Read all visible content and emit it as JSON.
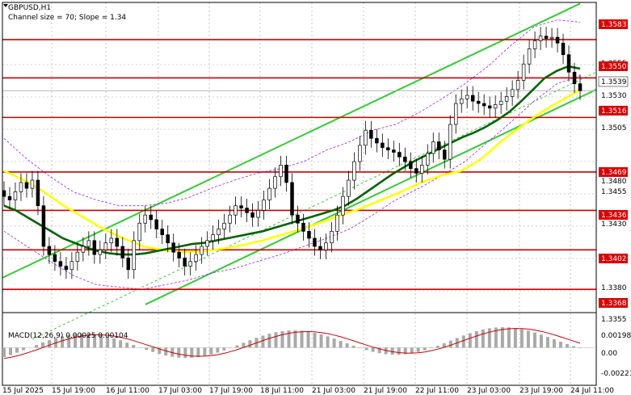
{
  "header": {
    "symbol_timeframe": "GBPUSD,H1",
    "channel_info": "Channel size = 70; Slope = 1.34"
  },
  "levels": [
    {
      "label": "1.3583",
      "value": 1.3583
    },
    {
      "label": "1.3550",
      "value": 1.355
    },
    {
      "label": "1.3516",
      "value": 1.3516
    },
    {
      "label": "1.3469",
      "value": 1.3469
    },
    {
      "label": "1.3436",
      "value": 1.3436
    },
    {
      "label": "1.3402",
      "value": 1.3402
    },
    {
      "label": "1.3368",
      "value": 1.3368
    }
  ],
  "current_price": {
    "label": "1.3539",
    "value": 1.3539
  },
  "price_axis_labels": [
    "1.3555",
    "1.3530",
    "1.3505",
    "1.3480",
    "1.3455",
    "1.3430",
    "1.3380",
    "1.3355"
  ],
  "time_axis_labels": [
    "15 Jul 2025",
    "15 Jul 19:00",
    "16 Jul 11:00",
    "17 Jul 03:00",
    "17 Jul 19:00",
    "18 Jul 11:00",
    "21 Jul 03:00",
    "21 Jul 19:00",
    "22 Jul 11:00",
    "23 Jul 03:00",
    "23 Jul 19:00",
    "24 Jul 11:00"
  ],
  "macd": {
    "label": "MACD(12,26,9) 0.00025 0.00104",
    "axis_labels": [
      "0.00198",
      "0.00",
      "-0.00221"
    ]
  },
  "colors": {
    "level_line": "#cc0000",
    "level_box": "#dd0000",
    "ma_slow": "#ffff00",
    "ma_fast": "#006400",
    "channel": "#32cd32",
    "envelope": "#a020f0",
    "candle": "#000000",
    "grid": "#a0a0a0",
    "macd_bar": "#a9a9a9",
    "macd_signal": "#cc0000"
  },
  "chart_data": {
    "type": "candlestick",
    "price_range": [
      1.3348,
      1.3615
    ],
    "macd_range": [
      -0.00221,
      0.00198
    ],
    "closes": [
      1.3448,
      1.3445,
      1.3452,
      1.346,
      1.3455,
      1.3462,
      1.344,
      1.3405,
      1.3398,
      1.3392,
      1.3388,
      1.3385,
      1.3392,
      1.34,
      1.3405,
      1.341,
      1.3398,
      1.3402,
      1.3408,
      1.3412,
      1.3405,
      1.3395,
      1.3385,
      1.341,
      1.3425,
      1.3432,
      1.3428,
      1.342,
      1.3415,
      1.3408,
      1.34,
      1.3395,
      1.3388,
      1.3392,
      1.3398,
      1.3405,
      1.341,
      1.3415,
      1.342,
      1.3425,
      1.3432,
      1.344,
      1.3438,
      1.3434,
      1.343,
      1.3436,
      1.3445,
      1.3455,
      1.3465,
      1.3475,
      1.346,
      1.3432,
      1.3425,
      1.3418,
      1.3412,
      1.3405,
      1.3402,
      1.3408,
      1.3418,
      1.3432,
      1.3448,
      1.3462,
      1.3478,
      1.3492,
      1.3505,
      1.3498,
      1.3494,
      1.349,
      1.3488,
      1.3486,
      1.3482,
      1.3478,
      1.3472,
      1.3468,
      1.3475,
      1.3485,
      1.3495,
      1.3488,
      1.348,
      1.351,
      1.3528,
      1.3532,
      1.3535,
      1.353,
      1.3528,
      1.3526,
      1.3524,
      1.3527,
      1.353,
      1.3534,
      1.354,
      1.3548,
      1.3562,
      1.3575,
      1.3582,
      1.3586,
      1.3584,
      1.3585,
      1.358,
      1.357,
      1.3555,
      1.3545,
      1.3539
    ],
    "ma_fast": [
      1.344,
      1.3436,
      1.343,
      1.3424,
      1.3418,
      1.3412,
      1.3408,
      1.3404,
      1.3401,
      1.3399,
      1.3398,
      1.3398,
      1.3399,
      1.3401,
      1.3403,
      1.3405,
      1.3407,
      1.3408,
      1.341,
      1.3412,
      1.3414,
      1.3416,
      1.3418,
      1.3421,
      1.3424,
      1.3427,
      1.343,
      1.3433,
      1.3436,
      1.344,
      1.3446,
      1.3453,
      1.346,
      1.3467,
      1.3473,
      1.3479,
      1.3484,
      1.3489,
      1.3494,
      1.3499,
      1.3503,
      1.3508,
      1.3514,
      1.3521,
      1.353,
      1.354,
      1.355,
      1.3556,
      1.356,
      1.3558
    ]
  }
}
